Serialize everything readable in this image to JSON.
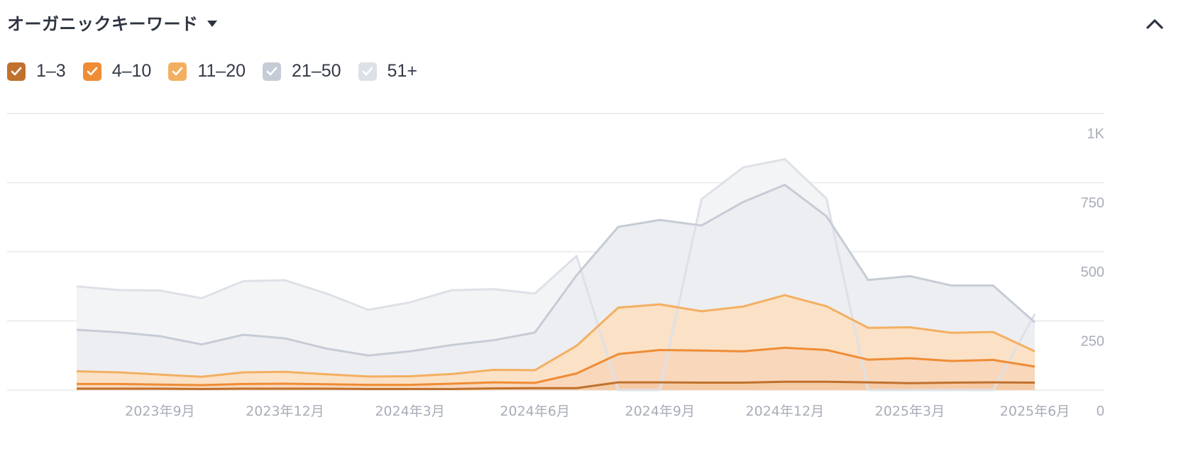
{
  "header": {
    "title": "オーガニックキーワード",
    "dropdown_icon": "caret-down-icon",
    "collapse_icon": "chevron-up-icon"
  },
  "legend": [
    {
      "label": "1–3",
      "color": "#c0712d",
      "checked": true
    },
    {
      "label": "4–10",
      "color": "#ef8c35",
      "checked": true
    },
    {
      "label": "11–20",
      "color": "#f3af61",
      "checked": true
    },
    {
      "label": "21–50",
      "color": "#c6ccd6",
      "checked": true
    },
    {
      "label": "51+",
      "color": "#dde1e7",
      "checked": true
    }
  ],
  "chart_data": {
    "type": "area",
    "stacked": true,
    "x": [
      "2023-07",
      "2023-08",
      "2023-09",
      "2023-10",
      "2023-11",
      "2023-12",
      "2024-01",
      "2024-02",
      "2024-03",
      "2024-04",
      "2024-05",
      "2024-06",
      "2024-07",
      "2024-08",
      "2024-09",
      "2024-10",
      "2024-11",
      "2024-12",
      "2025-01",
      "2025-02",
      "2025-03",
      "2025-04",
      "2025-05",
      "2025-06"
    ],
    "xticks": [
      {
        "x": "2023-09",
        "label": "2023年9月"
      },
      {
        "x": "2023-12",
        "label": "2023年12月"
      },
      {
        "x": "2024-03",
        "label": "2024年3月"
      },
      {
        "x": "2024-06",
        "label": "2024年6月"
      },
      {
        "x": "2024-09",
        "label": "2024年9月"
      },
      {
        "x": "2024-12",
        "label": "2024年12月"
      },
      {
        "x": "2025-03",
        "label": "2025年3月"
      },
      {
        "x": "2025-06",
        "label": "2025年6月"
      }
    ],
    "yticks": [
      {
        "value": 0,
        "label": "0"
      },
      {
        "value": 250,
        "label": "250"
      },
      {
        "value": 500,
        "label": "500"
      },
      {
        "value": 750,
        "label": "750"
      },
      {
        "value": 1000,
        "label": "1K"
      }
    ],
    "ylim": [
      0,
      1000
    ],
    "grid": true,
    "legend_position": "top-left",
    "series": [
      {
        "name": "1–3",
        "color": "#c0712d",
        "fill": "#f5cba6",
        "cumulative": [
          5,
          5,
          5,
          4,
          5,
          5,
          5,
          4,
          4,
          4,
          6,
          7,
          7,
          28,
          28,
          27,
          27,
          30,
          30,
          28,
          25,
          27,
          28,
          27
        ]
      },
      {
        "name": "4–10",
        "color": "#ef8c35",
        "fill": "#f9d7bb",
        "cumulative": [
          22,
          22,
          20,
          18,
          22,
          23,
          21,
          19,
          19,
          23,
          28,
          26,
          60,
          130,
          145,
          143,
          140,
          153,
          145,
          110,
          115,
          105,
          109,
          85
        ]
      },
      {
        "name": "11–20",
        "color": "#f3af61",
        "fill": "#fbe1c6",
        "cumulative": [
          68,
          64,
          56,
          48,
          64,
          66,
          57,
          49,
          50,
          58,
          73,
          72,
          160,
          298,
          310,
          285,
          302,
          343,
          303,
          225,
          227,
          207,
          210,
          140
        ]
      },
      {
        "name": "21–50",
        "color": "#c6ccd6",
        "fill": "#eceef2",
        "cumulative": [
          218,
          209,
          195,
          165,
          200,
          187,
          150,
          125,
          140,
          163,
          180,
          208,
          415,
          590,
          615,
          595,
          680,
          742,
          628,
          398,
          412,
          378,
          378,
          245
        ]
      },
      {
        "name": "51+",
        "color": "#dde1e7",
        "fill": "#f3f4f6",
        "cumulative": [
          375,
          362,
          360,
          332,
          394,
          397,
          349,
          290,
          317,
          361,
          365,
          349,
          485,
          0,
          0,
          690,
          805,
          835,
          692,
          0,
          0,
          0,
          0,
          275
        ]
      }
    ]
  }
}
